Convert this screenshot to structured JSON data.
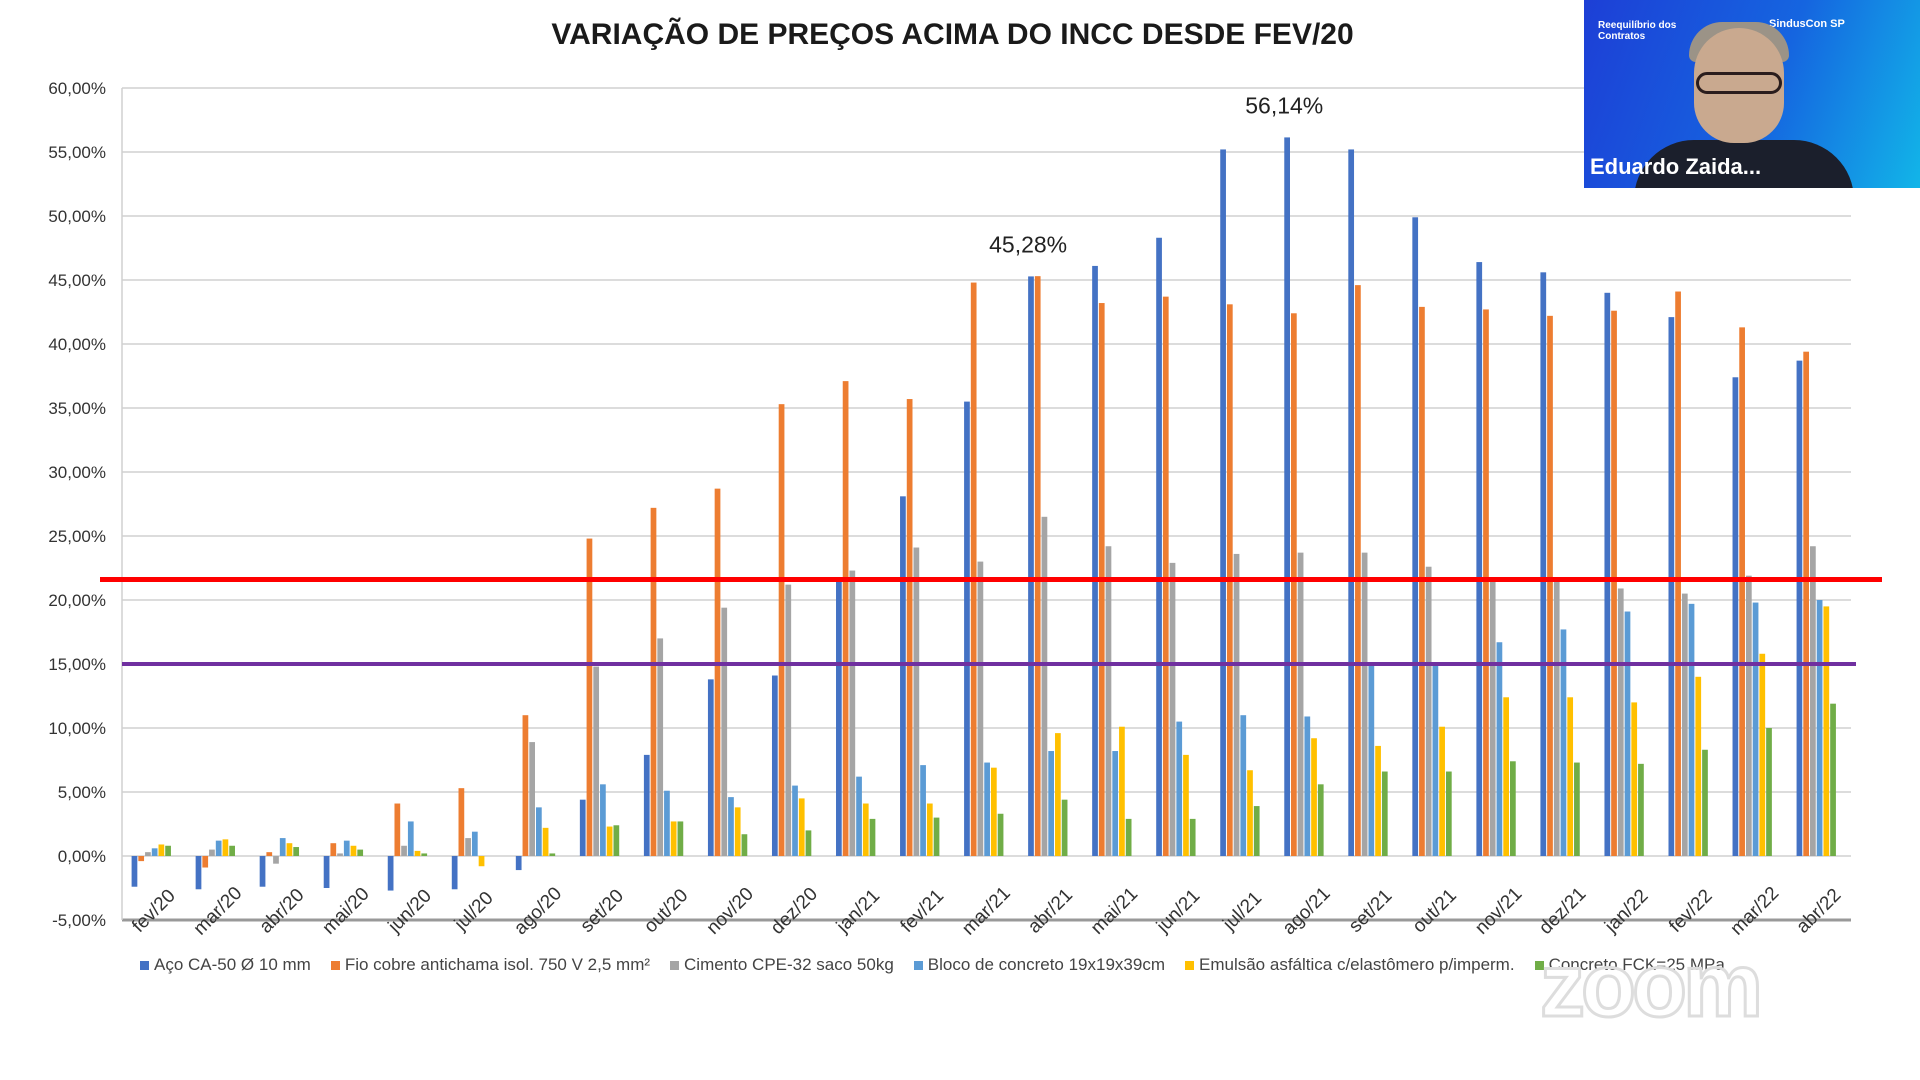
{
  "chart_data": {
    "type": "bar",
    "title": "VARIAÇÃO DE PREÇOS ACIMA DO INCC DESDE FEV/20",
    "categories": [
      "fev/20",
      "mar/20",
      "abr/20",
      "mai/20",
      "jun/20",
      "jul/20",
      "ago/20",
      "set/20",
      "out/20",
      "nov/20",
      "dez/20",
      "jan/21",
      "fev/21",
      "mar/21",
      "abr/21",
      "mai/21",
      "jun/21",
      "jul/21",
      "ago/21",
      "set/21",
      "out/21",
      "nov/21",
      "dez/21",
      "jan/22",
      "fev/22",
      "mar/22",
      "abr/22"
    ],
    "series": [
      {
        "name": "Aço CA-50 Ø 10 mm",
        "color": "#4472c4",
        "values": [
          -2.4,
          -2.6,
          -2.4,
          -2.5,
          -2.7,
          -2.6,
          -1.1,
          4.4,
          7.9,
          13.8,
          14.1,
          21.5,
          28.1,
          35.5,
          45.28,
          46.1,
          48.3,
          55.2,
          56.14,
          55.2,
          49.9,
          46.4,
          45.6,
          44.0,
          42.1,
          37.4,
          38.7
        ]
      },
      {
        "name": "Fio cobre antichama isol. 750 V 2,5 mm²",
        "color": "#ed7d31",
        "values": [
          -0.4,
          -0.9,
          0.3,
          1.0,
          4.1,
          5.3,
          11.0,
          24.8,
          27.2,
          28.7,
          35.3,
          37.1,
          35.7,
          44.8,
          45.3,
          43.2,
          43.7,
          43.1,
          42.4,
          44.6,
          42.9,
          42.7,
          42.2,
          42.6,
          44.1,
          41.3,
          39.4
        ]
      },
      {
        "name": "Cimento CPE-32 saco 50kg",
        "color": "#a5a5a5",
        "values": [
          0.3,
          0.5,
          -0.6,
          0.2,
          0.8,
          1.4,
          8.9,
          14.8,
          17.0,
          19.4,
          21.2,
          22.3,
          24.1,
          23.0,
          26.5,
          24.2,
          22.9,
          23.6,
          23.7,
          23.7,
          22.6,
          21.5,
          21.5,
          20.9,
          20.5,
          21.9,
          24.2
        ]
      },
      {
        "name": "Bloco de concreto 19x19x39cm",
        "color": "#5b9bd5",
        "values": [
          0.6,
          1.2,
          1.4,
          1.2,
          2.7,
          1.9,
          3.8,
          5.6,
          5.1,
          4.6,
          5.5,
          6.2,
          7.1,
          7.3,
          8.2,
          8.2,
          10.5,
          11.0,
          10.9,
          14.9,
          15.0,
          16.7,
          17.7,
          19.1,
          19.7,
          19.8,
          20.0
        ]
      },
      {
        "name": "Emulsão asfáltica c/elastômero p/imperm.",
        "color": "#ffc000",
        "values": [
          0.9,
          1.3,
          1.0,
          0.8,
          0.4,
          -0.8,
          2.2,
          2.3,
          2.7,
          3.8,
          4.5,
          4.1,
          4.1,
          6.9,
          9.6,
          10.1,
          7.9,
          6.7,
          9.2,
          8.6,
          10.1,
          12.4,
          12.4,
          12.0,
          14.0,
          15.8,
          19.5
        ]
      },
      {
        "name": "Concreto FCK=25 MPa",
        "color": "#70ad47",
        "values": [
          0.8,
          0.8,
          0.7,
          0.5,
          0.2,
          0.0,
          0.2,
          2.4,
          2.7,
          1.7,
          2.0,
          2.9,
          3.0,
          3.3,
          4.4,
          2.9,
          2.9,
          3.9,
          5.6,
          6.6,
          6.6,
          7.4,
          7.3,
          7.2,
          8.3,
          10.0,
          11.9
        ]
      }
    ],
    "ylim": [
      -5,
      60
    ],
    "yticks": [
      "-5,00%",
      "0,00%",
      "5,00%",
      "10,00%",
      "15,00%",
      "20,00%",
      "25,00%",
      "30,00%",
      "35,00%",
      "40,00%",
      "45,00%",
      "50,00%",
      "55,00%",
      "60,00%"
    ],
    "grid": true,
    "legend": "bottom",
    "reference_lines": [
      {
        "value": 21.6,
        "color": "#ff0000"
      },
      {
        "value": 15,
        "color": "#7030a0"
      }
    ],
    "annotations": [
      {
        "category": "abr/21",
        "value": 45.28,
        "text": "45,28%"
      },
      {
        "category": "ago/21",
        "value": 56.14,
        "text": "56,14%"
      }
    ]
  },
  "video": {
    "participant_name": "Eduardo Zaida...",
    "brand_left": "Reequilíbrio dos Contratos",
    "brand_right": "SindusCon SP"
  },
  "watermark": "zoom"
}
